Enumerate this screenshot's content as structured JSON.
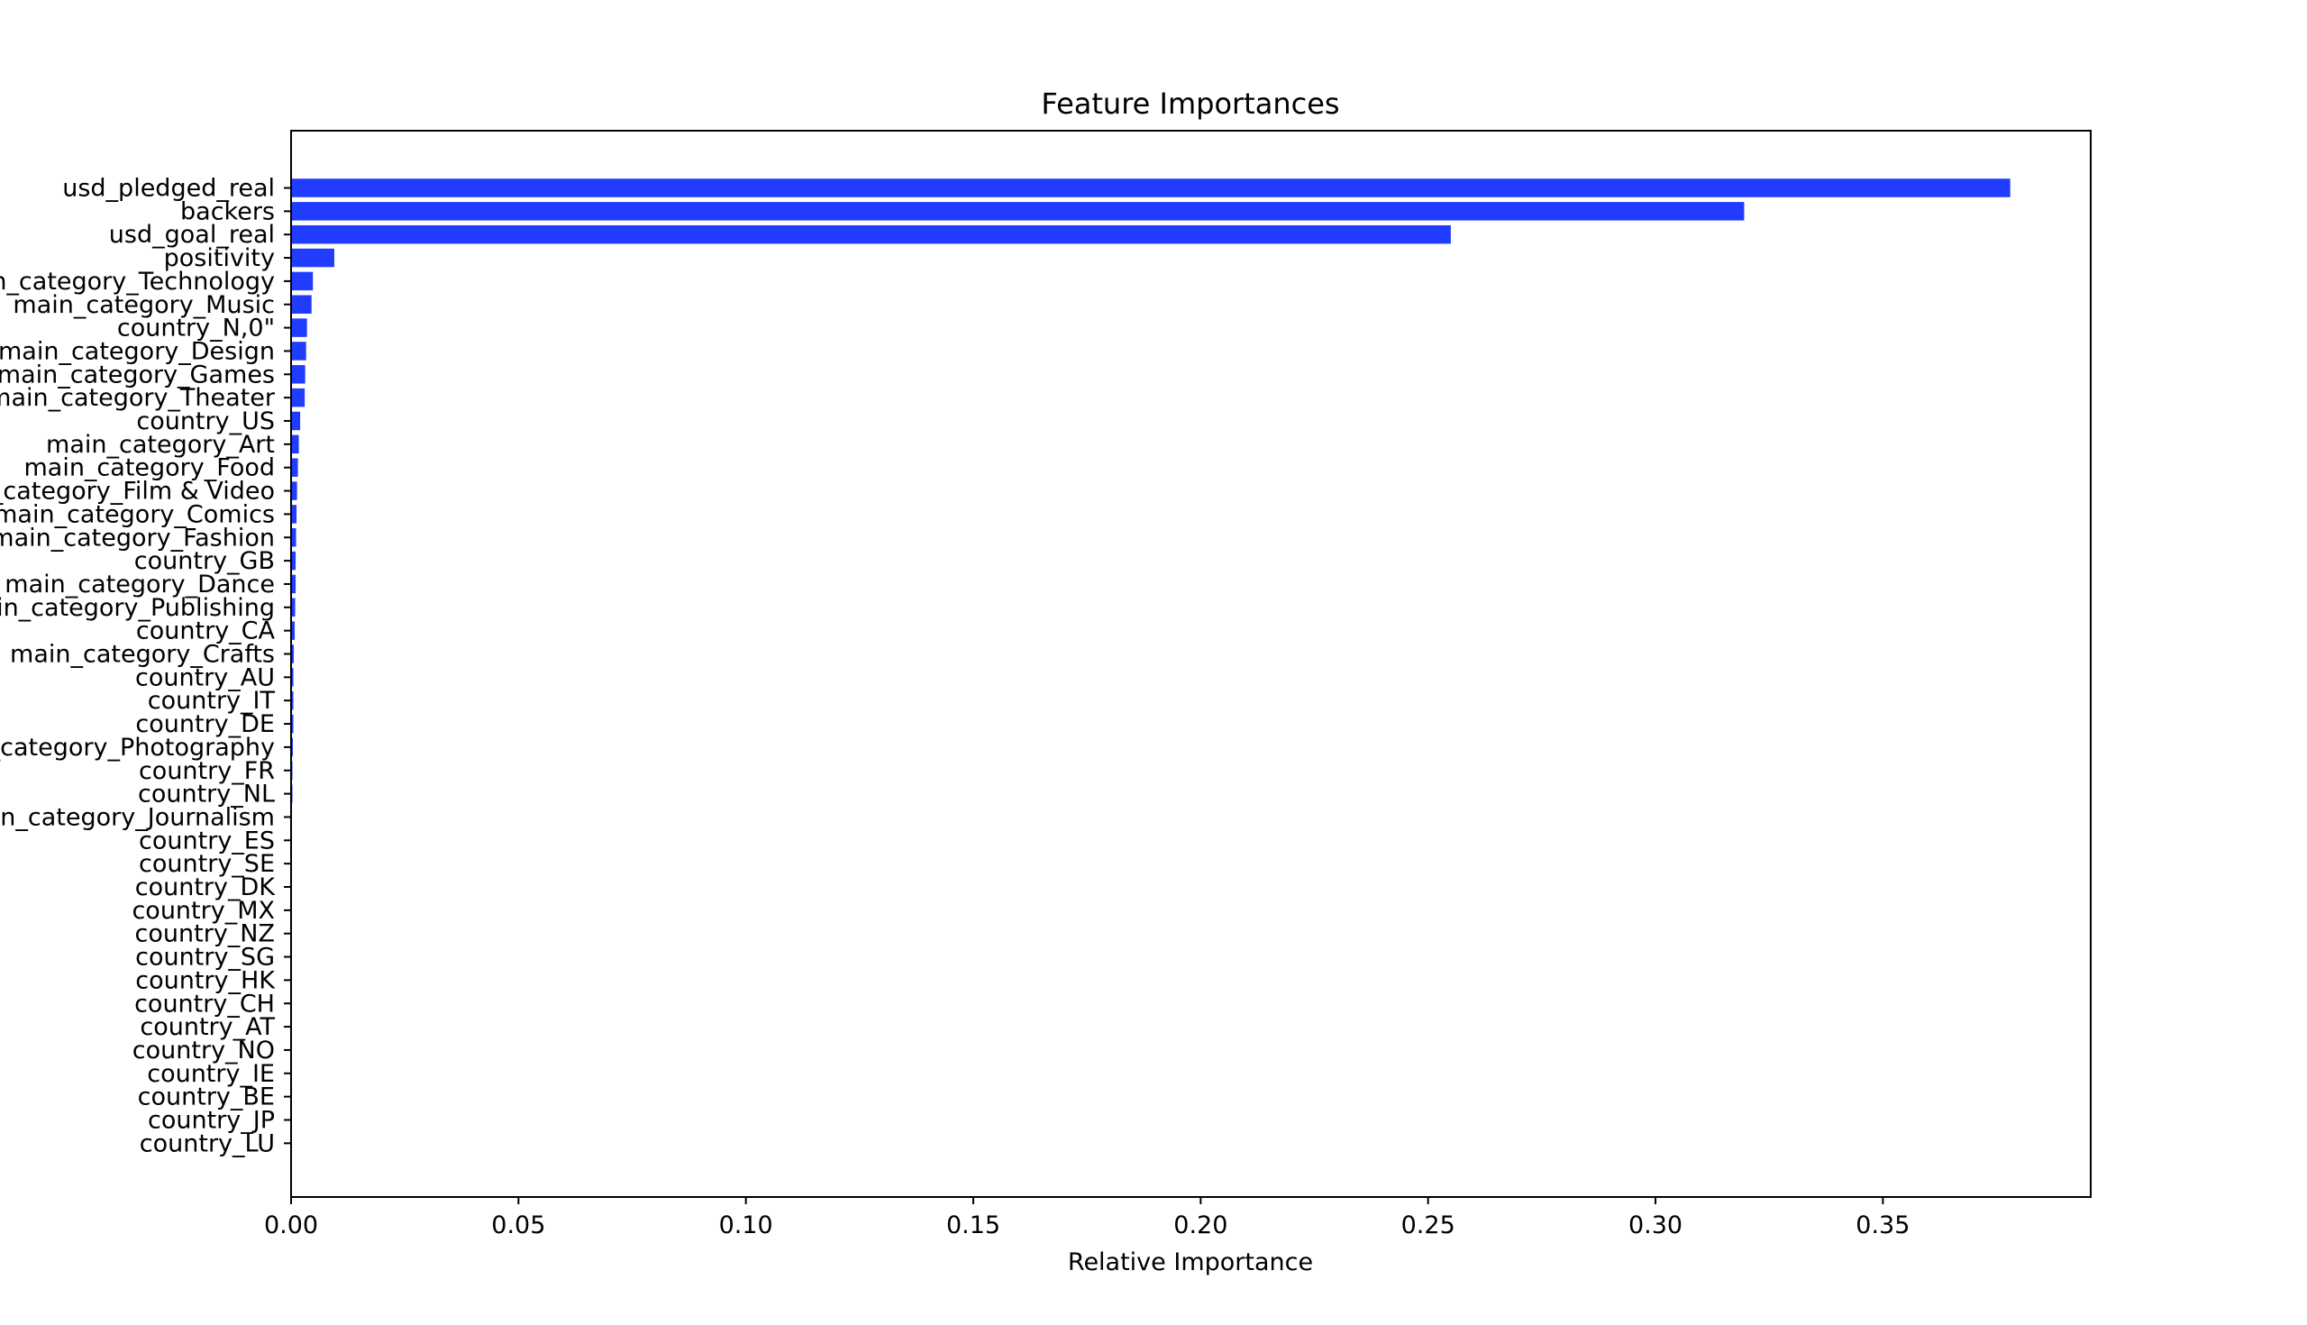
{
  "chart_data": {
    "type": "bar",
    "orientation": "horizontal",
    "title": "Feature Importances",
    "xlabel": "Relative Importance",
    "ylabel": "",
    "xlim": [
      0.0,
      0.3957
    ],
    "xticks": [
      "0.00",
      "0.05",
      "0.10",
      "0.15",
      "0.20",
      "0.25",
      "0.30",
      "0.35"
    ],
    "grid": false,
    "bar_color": "#1f3cff",
    "categories": [
      "usd_pledged_real",
      "backers",
      "usd_goal_real",
      "positivity",
      "main_category_Technology",
      "main_category_Music",
      "country_N,0\"",
      "main_category_Design",
      "main_category_Games",
      "main_category_Theater",
      "country_US",
      "main_category_Art",
      "main_category_Food",
      "main_category_Film & Video",
      "main_category_Comics",
      "main_category_Fashion",
      "country_GB",
      "main_category_Dance",
      "main_category_Publishing",
      "country_CA",
      "main_category_Crafts",
      "country_AU",
      "country_IT",
      "country_DE",
      "main_category_Photography",
      "country_FR",
      "country_NL",
      "main_category_Journalism",
      "country_ES",
      "country_SE",
      "country_DK",
      "country_MX",
      "country_NZ",
      "country_SG",
      "country_HK",
      "country_CH",
      "country_AT",
      "country_NO",
      "country_IE",
      "country_BE",
      "country_JP",
      "country_LU"
    ],
    "values": [
      0.378,
      0.3195,
      0.255,
      0.0095,
      0.0048,
      0.0045,
      0.0035,
      0.0033,
      0.0031,
      0.003,
      0.002,
      0.0017,
      0.0015,
      0.0013,
      0.0012,
      0.0011,
      0.001,
      0.001,
      0.0009,
      0.0008,
      0.0006,
      0.0005,
      0.0005,
      0.0005,
      0.0004,
      0.0003,
      0.0003,
      0.0002,
      0.0002,
      0.0002,
      0.0001,
      0.0001,
      0.0001,
      0.0001,
      0.0001,
      0.0001,
      0.0001,
      0.0001,
      0.0001,
      5e-05,
      5e-05,
      5e-05
    ]
  }
}
